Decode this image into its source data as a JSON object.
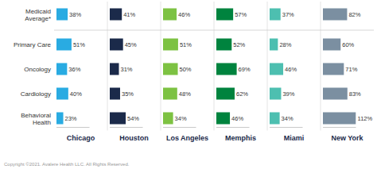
{
  "chart_data": {
    "type": "bar",
    "orientation": "horizontal",
    "categories": [
      "Medicaid\nAverage*",
      "Primary Care",
      "Oncology",
      "Cardiology",
      "Behavioral\nHealth"
    ],
    "series": [
      {
        "name": "Chicago",
        "color": "#29ABE2",
        "values": [
          38,
          51,
          36,
          40,
          23
        ],
        "value_labels": [
          "38%",
          "51%",
          "36%",
          "40%",
          "23%"
        ]
      },
      {
        "name": "Houston",
        "color": "#1B2A4A",
        "values": [
          41,
          45,
          31,
          35,
          54
        ],
        "value_labels": [
          "41%",
          "45%",
          "31%",
          "35%",
          "54%"
        ]
      },
      {
        "name": "Los Angeles",
        "color": "#7DC242",
        "values": [
          46,
          51,
          50,
          48,
          34
        ],
        "value_labels": [
          "46%",
          "51%",
          "50%",
          "48%",
          "34%"
        ]
      },
      {
        "name": "Memphis",
        "color": "#00833E",
        "values": [
          57,
          52,
          69,
          62,
          46
        ],
        "value_labels": [
          "57%",
          "52%",
          "69%",
          "62%",
          "46%"
        ]
      },
      {
        "name": "Miami",
        "color": "#4DBFB0",
        "values": [
          37,
          28,
          46,
          39,
          34
        ],
        "value_labels": [
          "37%",
          "28%",
          "46%",
          "39%",
          "34%"
        ]
      },
      {
        "name": "New York",
        "color": "#7B8FA1",
        "values": [
          82,
          60,
          71,
          83,
          112
        ],
        "value_labels": [
          "82%",
          "60%",
          "71%",
          "83%",
          "112%"
        ]
      }
    ],
    "xlim": [
      0,
      112
    ],
    "data_labels": true,
    "tick_labels": false,
    "grid": false,
    "annotations": [
      "Copyright ©2021. Avalere Health LLC. All Rights Reserved."
    ]
  }
}
